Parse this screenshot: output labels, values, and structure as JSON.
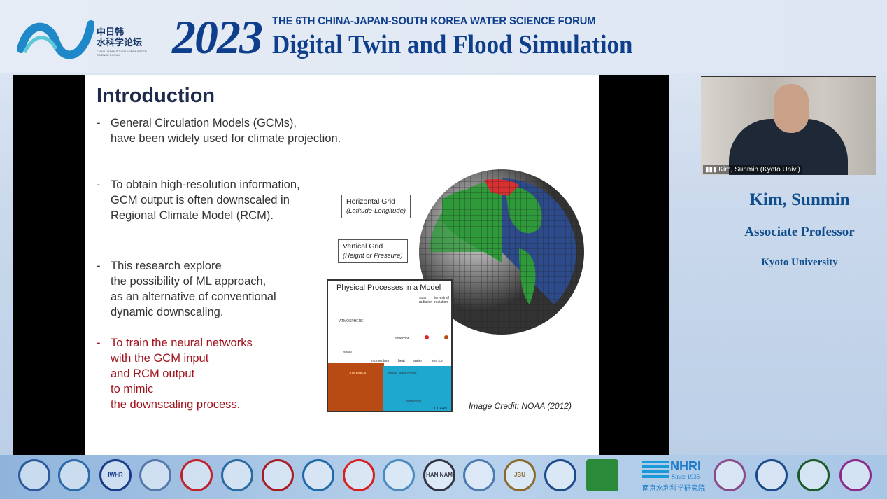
{
  "header": {
    "logo_cn_line1": "中日韩",
    "logo_cn_line2": "水科学论坛",
    "logo_en": "CHINA-JAPAN-SOUTH KOREA WATER SCIENCE FORUM",
    "year": "2023",
    "forum": "THE 6TH CHINA-JAPAN-SOUTH KOREA WATER SCIENCE FORUM",
    "title": "Digital Twin and Flood Simulation"
  },
  "slide": {
    "title": "Introduction",
    "bullets": [
      {
        "dash": "-",
        "lines": [
          "General Circulation Models (GCMs),",
          "have been widely used for climate projection."
        ]
      },
      {
        "dash": "-",
        "lines": [
          "To obtain high-resolution information,",
          "GCM output is often downscaled in",
          "Regional Climate Model (RCM)."
        ]
      },
      {
        "dash": "-",
        "lines": [
          "This research explore",
          "the possibility of ML approach,",
          "as an alternative of conventional",
          "dynamic downscaling."
        ]
      },
      {
        "dash": "-",
        "lines": [
          "To train the neural networks",
          "with the GCM input",
          "and RCM output",
          "to mimic",
          "the downscaling process."
        ]
      }
    ],
    "callout_horizontal": {
      "title": "Horizontal Grid",
      "sub": "(Latitude-Longitude)"
    },
    "callout_vertical": {
      "title": "Vertical Grid",
      "sub": "(Height or Pressure)"
    },
    "physical": {
      "title": "Physical Processes in a Model",
      "atmosphere": "ATMOSPHERE",
      "solar": "solar radiation",
      "terrestrial": "terrestrial radiation",
      "advection": "advection",
      "snow": "snow",
      "momentum": "momentum",
      "heat": "heat",
      "water": "water",
      "sea_ice": "sea ice",
      "continent": "CONTINENT",
      "mixed": "mixed layer ocean",
      "advection2": "advection",
      "ocean": "OCEAN"
    },
    "credit": "Image Credit: NOAA (2012)"
  },
  "video": {
    "participant": "Kim, Sunmin (Kyoto Univ.)"
  },
  "speaker": {
    "name": "Kim, Sunmin",
    "position": "Associate Professor",
    "affiliation": "Kyoto University"
  },
  "footer": {
    "logos": [
      {
        "text": "",
        "color": "#2b5a9a"
      },
      {
        "text": "",
        "color": "#2d6aa8"
      },
      {
        "text": "IWHR",
        "color": "#1a3a8a"
      },
      {
        "text": "",
        "color": "#5577aa"
      },
      {
        "text": "",
        "color": "#c0202a"
      },
      {
        "text": "",
        "color": "#2a6aa0"
      },
      {
        "text": "",
        "color": "#a81c24"
      },
      {
        "text": "",
        "color": "#1e6aa8"
      },
      {
        "text": "",
        "color": "#d82020"
      },
      {
        "text": "",
        "color": "#4a8ac0"
      },
      {
        "text": "HAN NAM",
        "color": "#334"
      },
      {
        "text": "",
        "color": "#4a7ab0"
      },
      {
        "text": "JBU",
        "color": "#8a6a2a"
      },
      {
        "text": "",
        "color": "#1a4a8a"
      },
      {
        "text": "",
        "color": "#2a8a3a"
      },
      {
        "text": "",
        "color": "#8a4a8a"
      },
      {
        "text": "",
        "color": "#1a4a8a"
      },
      {
        "text": "",
        "color": "#1a5a2a"
      },
      {
        "text": "",
        "color": "#8a2a8a"
      }
    ],
    "nhri": {
      "name": "NHRI",
      "since": "Since 1935",
      "cn": "南京水利科学研究院"
    }
  },
  "colors": {
    "brand": "#0f3f8c",
    "accent_red": "#a0141e"
  }
}
